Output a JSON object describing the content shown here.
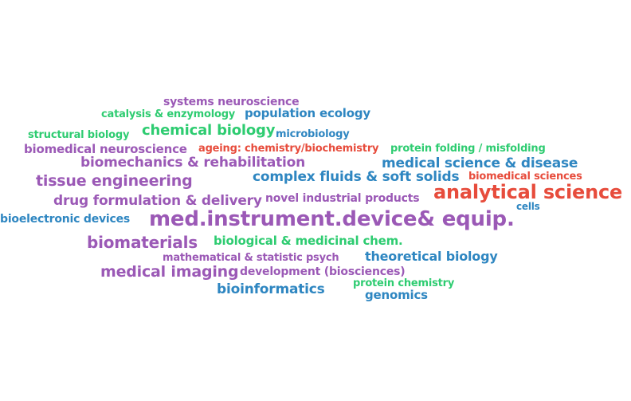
{
  "words": {
    "systems_neuroscience": "systems neuroscience",
    "catalysis_enzymology": "catalysis & enzymology",
    "population_ecology": "population ecology",
    "structural_biology": "structural biology",
    "chemical_biology": "chemical biology",
    "microbiology": "microbiology",
    "biomedical_neuroscience": "biomedical neuroscience",
    "ageing_chemistry": "ageing: chemistry/biochemistry",
    "protein_folding": "protein folding / misfolding",
    "biomechanics_rehabilitation": "biomechanics & rehabilitation",
    "medical_science_disease": "medical science & disease",
    "tissue_engineering": "tissue engineering",
    "complex_fluids": "complex fluids & soft solids",
    "biomedical_sciences": "biomedical sciences",
    "analytical_science": "analytical science",
    "drug_formulation": "drug formulation & delivery",
    "novel_industrial_products": "novel industrial products",
    "cells": "cells",
    "bioelectronic_devices": "bioelectronic devices",
    "med_instrument": "med.instrument.device& equip.",
    "biomaterials": "biomaterials",
    "biological_medicinal_chem": "biological & medicinal chem.",
    "mathematical_statistic_psych": "mathematical & statistic psych",
    "theoretical_biology": "theoretical biology",
    "medical_imaging": "medical imaging",
    "development_biosciences": "development (biosciences)",
    "protein_chemistry": "protein chemistry",
    "bioinformatics": "bioinformatics",
    "genomics": "genomics"
  },
  "colors": {
    "purple": "#9b59b6",
    "green": "#2ecc71",
    "blue": "#2e86c1",
    "red": "#e74c3c"
  }
}
